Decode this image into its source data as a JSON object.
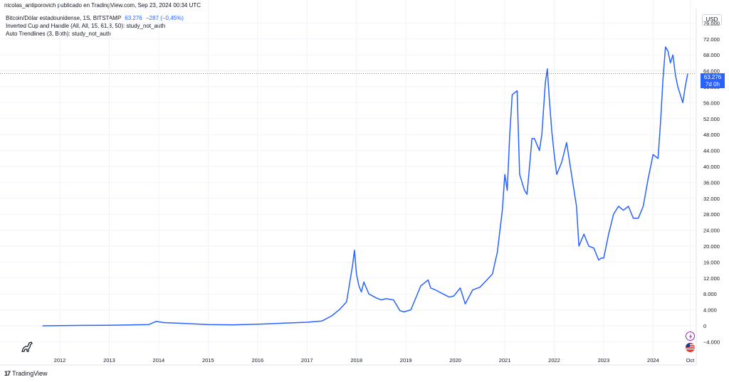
{
  "header": {
    "credit": "nicolas_antiporovich publicado en TradingView.com, Sep 23, 2024 00:34 UTC"
  },
  "legend": {
    "symbol": "Bitcoin/Dólar estadounidense, 1S, BITSTAMP",
    "price": "63.276",
    "change": "−287 (−0,45%)",
    "study1": "Inverted Cup and Handle (All, All, 15, 61,8, 50): study_not_auth",
    "study2": "Auto Trendlines (3, Both): study_not_auth"
  },
  "currency_button": "USD",
  "price_tag": {
    "price": "63.276",
    "countdown": "7d 0h"
  },
  "branding": {
    "logo_mark": "17",
    "name": "TradingView"
  },
  "colors": {
    "line": "#2962ff",
    "grid": "#f0f3fa",
    "price_line": "#2962ff"
  },
  "icons": [
    "dino-icon",
    "lightning-icon",
    "flag-icon",
    "tradingview-logo-icon"
  ],
  "chart_data": {
    "type": "line",
    "title": "",
    "xlabel": "",
    "ylabel": "",
    "ylim": [
      -4000,
      76000
    ],
    "y_ticks": [
      -4000,
      0,
      4000,
      8000,
      12000,
      16000,
      20000,
      24000,
      28000,
      32000,
      36000,
      40000,
      44000,
      48000,
      52000,
      56000,
      60000,
      64000,
      68000,
      72000,
      76000
    ],
    "y_tick_labels": [
      "−4.000",
      "0",
      "4.000",
      "8.000",
      "12.000",
      "16.000",
      "20.000",
      "24.000",
      "28.000",
      "32.000",
      "36.000",
      "40.000",
      "44.000",
      "48.000",
      "52.000",
      "56.000",
      "60.000",
      "64.000",
      "68.000",
      "72.000",
      "76.000"
    ],
    "x_ticks": [
      2012,
      2013,
      2014,
      2015,
      2016,
      2017,
      2018,
      2019,
      2020,
      2021,
      2022,
      2023,
      2024,
      2024.75
    ],
    "x_tick_labels": [
      "2012",
      "2013",
      "2014",
      "2015",
      "2016",
      "2017",
      "2018",
      "2019",
      "2020",
      "2021",
      "2022",
      "2023",
      "2024",
      "Oct"
    ],
    "xlim": [
      2010.8,
      2025.0
    ],
    "grid": true,
    "series": [
      {
        "color": "#2962ff",
        "x": [
          2011.65,
          2012.0,
          2012.5,
          2013.0,
          2013.3,
          2013.8,
          2013.95,
          2014.1,
          2014.5,
          2015.0,
          2015.5,
          2016.0,
          2016.5,
          2017.0,
          2017.3,
          2017.5,
          2017.65,
          2017.8,
          2017.92,
          2017.96,
          2018.0,
          2018.05,
          2018.1,
          2018.15,
          2018.25,
          2018.4,
          2018.5,
          2018.6,
          2018.75,
          2018.88,
          2018.96,
          2019.1,
          2019.3,
          2019.45,
          2019.5,
          2019.6,
          2019.75,
          2019.88,
          2019.97,
          2020.1,
          2020.2,
          2020.35,
          2020.5,
          2020.6,
          2020.75,
          2020.85,
          2020.95,
          2021.0,
          2021.05,
          2021.1,
          2021.15,
          2021.25,
          2021.3,
          2021.4,
          2021.45,
          2021.5,
          2021.55,
          2021.6,
          2021.7,
          2021.75,
          2021.82,
          2021.86,
          2021.9,
          2021.95,
          2022.0,
          2022.05,
          2022.15,
          2022.25,
          2022.35,
          2022.45,
          2022.5,
          2022.6,
          2022.7,
          2022.8,
          2022.9,
          2022.95,
          2023.0,
          2023.1,
          2023.2,
          2023.3,
          2023.4,
          2023.5,
          2023.6,
          2023.7,
          2023.8,
          2023.9,
          2024.0,
          2024.1,
          2024.15,
          2024.2,
          2024.25,
          2024.3,
          2024.35,
          2024.4,
          2024.45,
          2024.5,
          2024.55,
          2024.6,
          2024.65,
          2024.7
        ],
        "y": [
          0,
          50,
          100,
          150,
          200,
          300,
          1100,
          800,
          600,
          300,
          250,
          400,
          650,
          900,
          1200,
          2500,
          4000,
          6000,
          15000,
          19000,
          13000,
          10000,
          8500,
          11000,
          8000,
          7000,
          6500,
          6800,
          6500,
          3800,
          3500,
          4000,
          10000,
          11500,
          9500,
          9000,
          8000,
          7200,
          7500,
          9500,
          5500,
          9000,
          9700,
          11000,
          13000,
          18500,
          29000,
          38000,
          34000,
          48000,
          58000,
          59000,
          38000,
          34000,
          33000,
          40000,
          47000,
          47000,
          44000,
          48000,
          61000,
          64500,
          57000,
          49000,
          43000,
          38000,
          41000,
          46000,
          38000,
          30000,
          20000,
          23000,
          20000,
          19500,
          16500,
          17000,
          17000,
          23000,
          28000,
          30000,
          29000,
          30000,
          27000,
          27000,
          30000,
          37000,
          43000,
          42000,
          51000,
          62000,
          70000,
          69000,
          66000,
          68000,
          63000,
          60000,
          58000,
          56000,
          60000,
          63276
        ]
      }
    ]
  }
}
